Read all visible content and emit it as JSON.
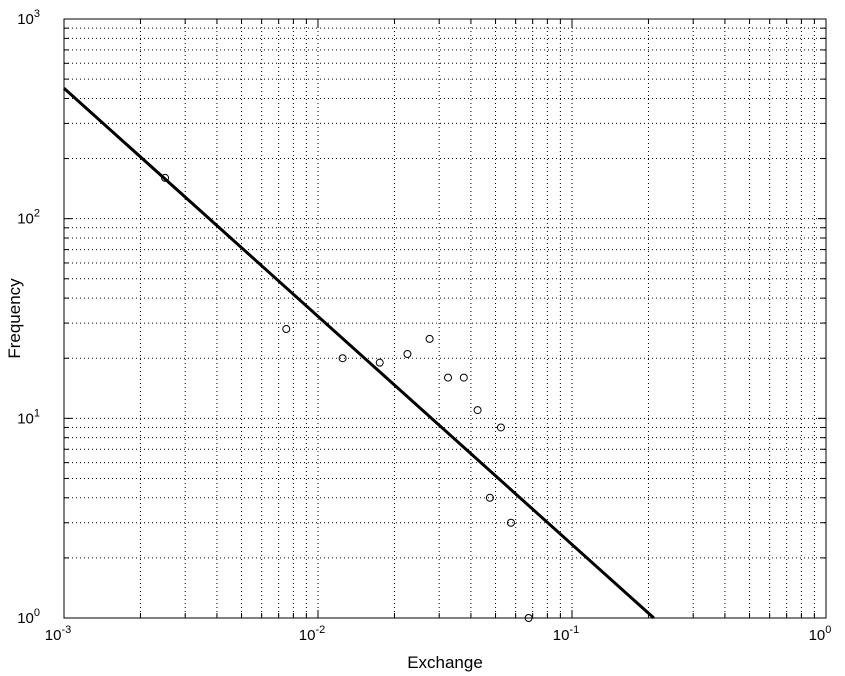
{
  "chart_data": {
    "type": "scatter",
    "xlabel": "Exchange",
    "ylabel": "Frequency",
    "xscale": "log",
    "yscale": "log",
    "xlim": [
      0.001,
      1
    ],
    "ylim": [
      1,
      1000
    ],
    "grid": true,
    "x_ticks": [
      {
        "base": "10",
        "exp": "-3",
        "value": 0.001
      },
      {
        "base": "10",
        "exp": "-2",
        "value": 0.01
      },
      {
        "base": "10",
        "exp": "-1",
        "value": 0.1
      },
      {
        "base": "10",
        "exp": "0",
        "value": 1
      }
    ],
    "y_ticks": [
      {
        "base": "10",
        "exp": "0",
        "value": 1
      },
      {
        "base": "10",
        "exp": "1",
        "value": 10
      },
      {
        "base": "10",
        "exp": "2",
        "value": 100
      },
      {
        "base": "10",
        "exp": "3",
        "value": 1000
      }
    ],
    "points": {
      "marker": "circle-open",
      "x": [
        0.0025,
        0.0075,
        0.0125,
        0.0175,
        0.0225,
        0.0275,
        0.0325,
        0.0375,
        0.0425,
        0.0475,
        0.0525,
        0.0575,
        0.0675
      ],
      "y": [
        160,
        28,
        20,
        19,
        21,
        25,
        16,
        16,
        11,
        4,
        9,
        3,
        1
      ]
    },
    "fit_line": {
      "x": [
        0.001,
        0.21
      ],
      "y": [
        450,
        1
      ]
    }
  }
}
